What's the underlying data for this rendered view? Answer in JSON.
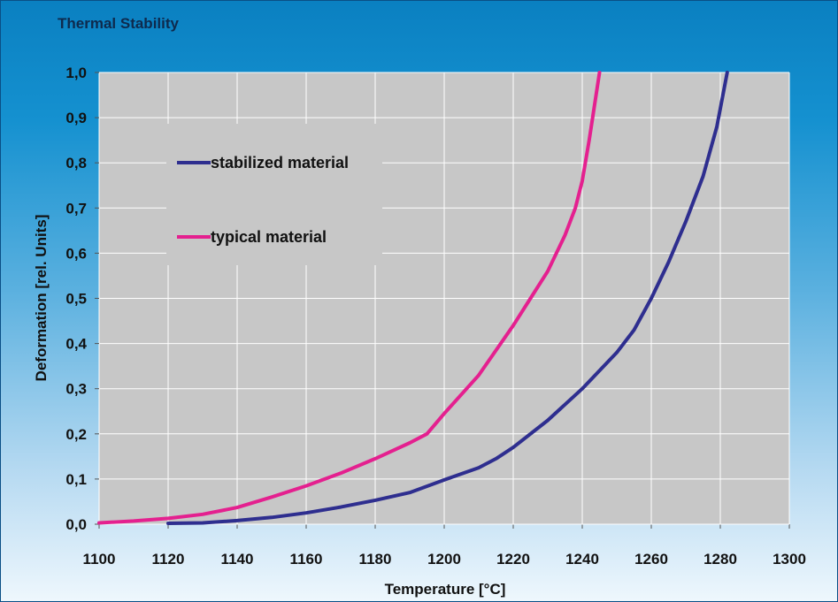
{
  "chart_data": {
    "type": "line",
    "title": "Thermal Stability",
    "xlabel": "Temperature [°C]",
    "ylabel": "Deformation [rel. Units]",
    "xlim": [
      1100,
      1300
    ],
    "ylim": [
      0,
      1.0
    ],
    "x_ticks": [
      "1100",
      "1120",
      "1140",
      "1160",
      "1180",
      "1200",
      "1220",
      "1240",
      "1260",
      "1280",
      "1300"
    ],
    "y_ticks": [
      "0,0",
      "0,1",
      "0,2",
      "0,3",
      "0,4",
      "0,5",
      "0,6",
      "0,7",
      "0,8",
      "0,9",
      "1,0"
    ],
    "grid": true,
    "legend_position": "upper-left",
    "series": [
      {
        "name": "stabilized material",
        "color": "#2e2e8f",
        "points": [
          [
            1120,
            0.002
          ],
          [
            1130,
            0.003
          ],
          [
            1140,
            0.008
          ],
          [
            1150,
            0.015
          ],
          [
            1160,
            0.025
          ],
          [
            1170,
            0.038
          ],
          [
            1180,
            0.053
          ],
          [
            1190,
            0.07
          ],
          [
            1200,
            0.098
          ],
          [
            1210,
            0.125
          ],
          [
            1215,
            0.145
          ],
          [
            1220,
            0.17
          ],
          [
            1230,
            0.23
          ],
          [
            1240,
            0.3
          ],
          [
            1250,
            0.38
          ],
          [
            1255,
            0.43
          ],
          [
            1260,
            0.5
          ],
          [
            1265,
            0.58
          ],
          [
            1270,
            0.67
          ],
          [
            1275,
            0.77
          ],
          [
            1279,
            0.88
          ],
          [
            1282,
            1.0
          ]
        ]
      },
      {
        "name": "typical material",
        "color": "#e4208f",
        "points": [
          [
            1100,
            0.003
          ],
          [
            1110,
            0.007
          ],
          [
            1120,
            0.013
          ],
          [
            1130,
            0.022
          ],
          [
            1140,
            0.037
          ],
          [
            1150,
            0.06
          ],
          [
            1160,
            0.085
          ],
          [
            1170,
            0.113
          ],
          [
            1180,
            0.145
          ],
          [
            1190,
            0.18
          ],
          [
            1195,
            0.2
          ],
          [
            1200,
            0.245
          ],
          [
            1210,
            0.33
          ],
          [
            1220,
            0.44
          ],
          [
            1225,
            0.5
          ],
          [
            1230,
            0.56
          ],
          [
            1235,
            0.64
          ],
          [
            1238,
            0.7
          ],
          [
            1240,
            0.76
          ],
          [
            1242,
            0.85
          ],
          [
            1244,
            0.95
          ],
          [
            1245,
            1.0
          ]
        ]
      }
    ]
  }
}
